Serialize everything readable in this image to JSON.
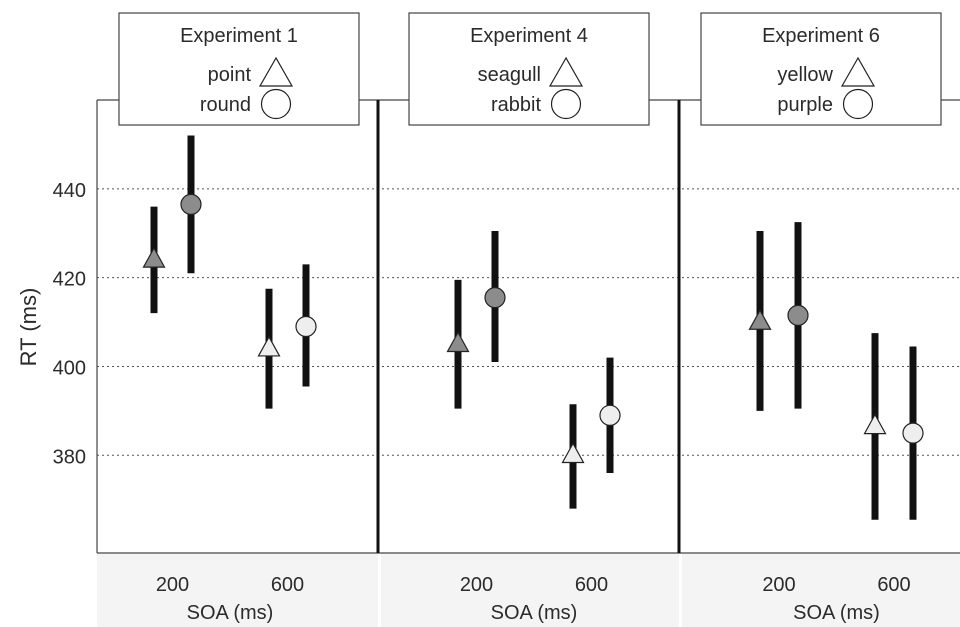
{
  "chart_data": {
    "type": "scatter",
    "ylabel": "RT (ms)",
    "ylim": [
      358,
      460
    ],
    "yticks": [
      380,
      400,
      420,
      440
    ],
    "grid": "horizontal-dotted",
    "categories": [
      "200",
      "600"
    ],
    "xlabel": "SOA (ms)",
    "panels": [
      {
        "title": "Experiment 1",
        "legend": [
          {
            "label": "point",
            "marker": "triangle"
          },
          {
            "label": "round",
            "marker": "circle"
          }
        ],
        "series": [
          {
            "marker": "triangle",
            "points": [
              {
                "x": "200",
                "y": 424,
                "low": 412,
                "high": 436,
                "fill": "#8c8c8c"
              },
              {
                "x": "600",
                "y": 404,
                "low": 390.5,
                "high": 417.5,
                "fill": "#eeeeee"
              }
            ]
          },
          {
            "marker": "circle",
            "points": [
              {
                "x": "200",
                "y": 436.5,
                "low": 421,
                "high": 452,
                "fill": "#8c8c8c"
              },
              {
                "x": "600",
                "y": 409,
                "low": 395.5,
                "high": 423,
                "fill": "#eeeeee"
              }
            ]
          }
        ]
      },
      {
        "title": "Experiment 4",
        "legend": [
          {
            "label": "seagull",
            "marker": "triangle"
          },
          {
            "label": "rabbit",
            "marker": "circle"
          }
        ],
        "series": [
          {
            "marker": "triangle",
            "points": [
              {
                "x": "200",
                "y": 405,
                "low": 390.5,
                "high": 419.5,
                "fill": "#8c8c8c"
              },
              {
                "x": "600",
                "y": 380,
                "low": 368,
                "high": 391.5,
                "fill": "#eeeeee"
              }
            ]
          },
          {
            "marker": "circle",
            "points": [
              {
                "x": "200",
                "y": 415.5,
                "low": 401,
                "high": 430.5,
                "fill": "#8c8c8c"
              },
              {
                "x": "600",
                "y": 389,
                "low": 376,
                "high": 402,
                "fill": "#eeeeee"
              }
            ]
          }
        ]
      },
      {
        "title": "Experiment 6",
        "legend": [
          {
            "label": "yellow",
            "marker": "triangle"
          },
          {
            "label": "purple",
            "marker": "circle"
          }
        ],
        "series": [
          {
            "marker": "triangle",
            "points": [
              {
                "x": "200",
                "y": 410,
                "low": 390,
                "high": 430.5,
                "fill": "#8c8c8c"
              },
              {
                "x": "600",
                "y": 386.5,
                "low": 365.5,
                "high": 407.5,
                "fill": "#eeeeee"
              }
            ]
          },
          {
            "marker": "circle",
            "points": [
              {
                "x": "200",
                "y": 411.5,
                "low": 390.5,
                "high": 432.5,
                "fill": "#8c8c8c"
              },
              {
                "x": "600",
                "y": 385,
                "low": 365.5,
                "high": 404.5,
                "fill": "#eeeeee"
              }
            ]
          }
        ]
      }
    ],
    "colors": {
      "dark_marker": "#8c8c8c",
      "light_marker": "#eeeeee",
      "error_bar": "#111111",
      "grid": "#555555"
    }
  }
}
